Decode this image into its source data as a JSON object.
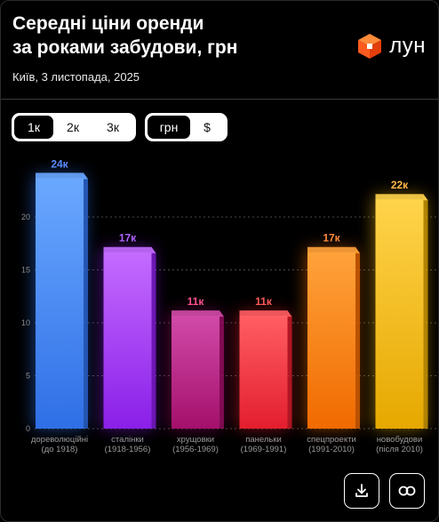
{
  "header": {
    "title_line1": "Середні ціни оренди",
    "title_line2": "за роками забудови, грн",
    "subtitle": "Київ, 3 листопада, 2025",
    "logo_text": "лун",
    "logo_icon": "orange-cube-logo"
  },
  "rooms_toggle": {
    "options": [
      "1к",
      "2к",
      "3к"
    ],
    "selected": "1к"
  },
  "currency_toggle": {
    "options": [
      "грн",
      "$"
    ],
    "selected": "грн"
  },
  "actions": {
    "download_icon": "download-icon",
    "link_icon": "link-icon"
  },
  "colors": {
    "background": "#000000",
    "brand_orange": "#ff5a1f"
  },
  "chart_data": {
    "type": "bar",
    "categories": [
      [
        "дореволюційні",
        "(до 1918)"
      ],
      [
        "сталінки",
        "(1918-1956)"
      ],
      [
        "хрущовки",
        "(1956-1969)"
      ],
      [
        "панельки",
        "(1969-1991)"
      ],
      [
        "спецпроекти",
        "(1991-2010)"
      ],
      [
        "новобудови",
        "(після 2010)"
      ]
    ],
    "values": [
      24,
      17,
      11,
      11,
      17,
      22
    ],
    "value_labels": [
      "24к",
      "17к",
      "11к",
      "11к",
      "17к",
      "22к"
    ],
    "bar_colors": [
      [
        "#6aa8ff",
        "#2f6fe6"
      ],
      [
        "#c46bff",
        "#8a1fe8"
      ],
      [
        "#d14aa8",
        "#a4106c"
      ],
      [
        "#ff5e62",
        "#e31e2e"
      ],
      [
        "#ffa23a",
        "#f06a00"
      ],
      [
        "#ffd34a",
        "#e6a800"
      ]
    ],
    "label_colors": [
      "#5b8cff",
      "#b061ff",
      "#ff4f8f",
      "#ff5a5a",
      "#ff8a3a",
      "#ffb84a"
    ],
    "ylim": [
      0,
      25
    ],
    "yticks": [
      0,
      5,
      10,
      15,
      20
    ],
    "ytick_labels": [
      "0",
      "5",
      "10",
      "15",
      "20"
    ],
    "grid": "dotted horizontal",
    "xlabel": "",
    "ylabel": ""
  }
}
